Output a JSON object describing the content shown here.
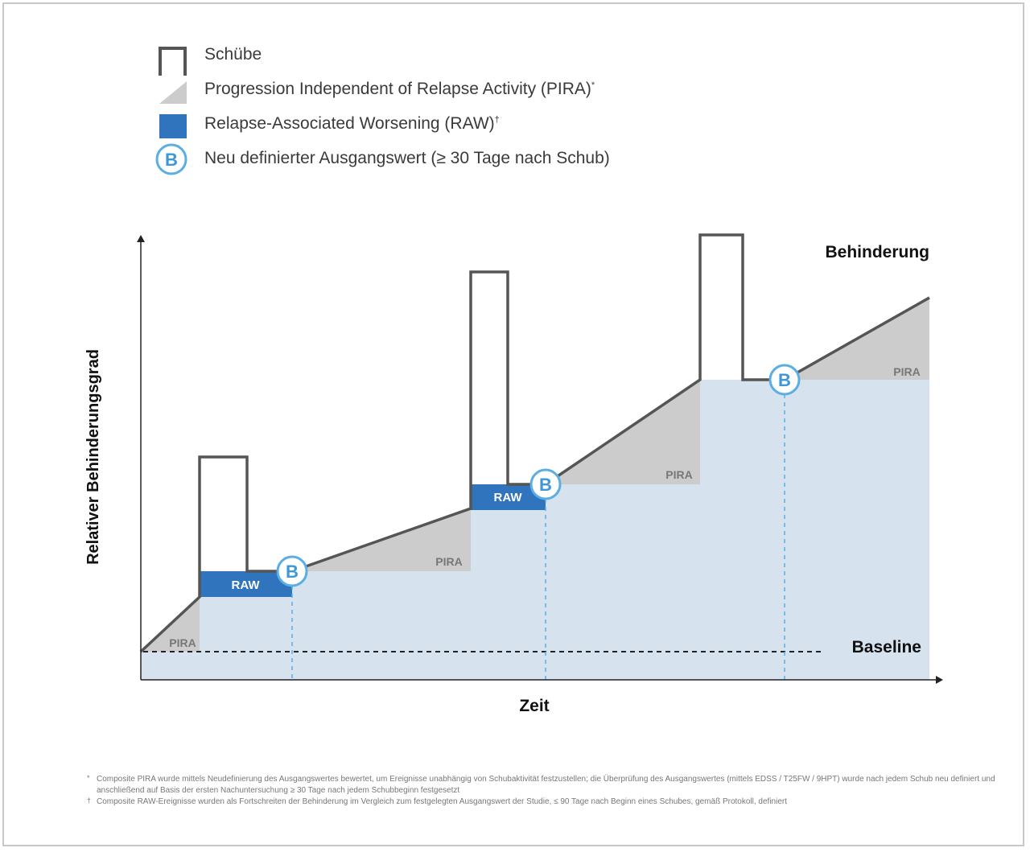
{
  "legend": [
    {
      "key": "schuebe",
      "label": "Schübe",
      "mark": ""
    },
    {
      "key": "pira",
      "label": "Progression Independent of Relapse Activity (PIRA)",
      "mark": "*"
    },
    {
      "key": "raw",
      "label": "Relapse-Associated Worsening (RAW)",
      "mark": "†"
    },
    {
      "key": "baseline_reset",
      "label": "Neu definierter Ausgangswert (≥ 30 Tage nach Schub)",
      "mark": ""
    }
  ],
  "diagram": {
    "y_axis_label": "Relativer Behinderungsgrad",
    "x_axis_label": "Zeit",
    "top_label": "Behinderung",
    "baseline_label": "Baseline",
    "pira_label": "PIRA",
    "raw_label": "RAW",
    "badge_letter": "B"
  },
  "colors": {
    "outline": "#555555",
    "pira_fill": "#cccccc",
    "raw_fill": "#2f74bd",
    "area_fill": "#d6e2ee",
    "badge_stroke": "#5aaee4",
    "badge_text": "#3f97d6",
    "dashed_line": "#5aaee4",
    "baseline_dash": "#222222"
  },
  "icons": {
    "schuebe": "relapse-bar-icon",
    "pira": "pira-triangle-icon",
    "raw": "raw-square-icon",
    "baseline_reset": "b-circle-icon"
  },
  "footnotes": [
    {
      "mark": "*",
      "text": "Composite PIRA wurde mittels Neudefinierung des Ausgangswertes bewertet, um Ereignisse unabhängig von Schubaktivität festzustellen; die Überprüfung des Ausgangswertes (mittels EDSS / T25FW / 9HPT) wurde nach jedem Schub neu definiert und anschließend auf Basis der ersten Nachuntersuchung ≥ 30 Tage nach jedem Schubbeginn festgesetzt"
    },
    {
      "mark": "†",
      "text": "Composite RAW-Ereignisse wurden als Fortschreiten der Behinderung im Vergleich zum festgelegten Ausgangswert der Studie, ≤ 90 Tage nach Beginn eines Schubes, gemäß Protokoll, definiert"
    }
  ]
}
